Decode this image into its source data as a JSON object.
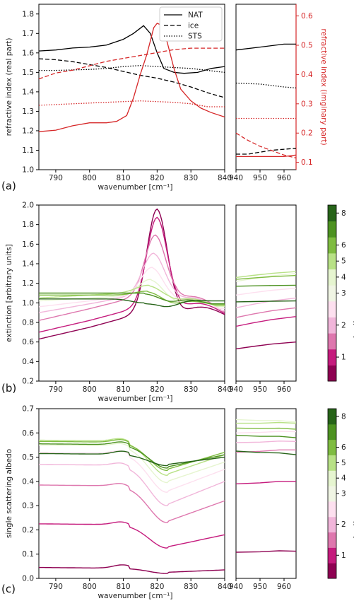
{
  "chart_data": [
    {
      "id": "a",
      "type": "line",
      "panel_label": "(a)",
      "xlabel": "wavenumber [cm⁻¹]",
      "ylabel": "refractive index (real part)",
      "ylabel_right": "refractive index (imginary part)",
      "x_ranges": [
        [
          785,
          840
        ],
        [
          940,
          965
        ]
      ],
      "x_ticks": [
        [
          790,
          800,
          810,
          820,
          830,
          840
        ],
        [
          940,
          950,
          960
        ]
      ],
      "ylim": [
        1.0,
        1.85
      ],
      "y_ticks": [
        1.0,
        1.1,
        1.2,
        1.3,
        1.4,
        1.5,
        1.6,
        1.7,
        1.8
      ],
      "ylim_right": [
        0.075,
        0.64
      ],
      "y_ticks_right": [
        0.1,
        0.2,
        0.3,
        0.4,
        0.5,
        0.6
      ],
      "right_axis_color": "#d62728",
      "legend": {
        "placement": "top-right",
        "entries": [
          {
            "label": "NAT",
            "style": "solid"
          },
          {
            "label": "ice",
            "style": "dashed"
          },
          {
            "label": "STS",
            "style": "dotted"
          }
        ]
      },
      "series": [
        {
          "label": "NAT",
          "axis": "left",
          "color": "#000000",
          "style": "solid",
          "points": [
            [
              785,
              1.61
            ],
            [
              790,
              1.615
            ],
            [
              795,
              1.625
            ],
            [
              800,
              1.63
            ],
            [
              805,
              1.64
            ],
            [
              810,
              1.67
            ],
            [
              813,
              1.7
            ],
            [
              816,
              1.74
            ],
            [
              818,
              1.7
            ],
            [
              820,
              1.6
            ],
            [
              822,
              1.52
            ],
            [
              825,
              1.5
            ],
            [
              828,
              1.495
            ],
            [
              832,
              1.5
            ],
            [
              836,
              1.52
            ],
            [
              840,
              1.53
            ]
          ],
          "points2": [
            [
              940,
              1.615
            ],
            [
              950,
              1.63
            ],
            [
              960,
              1.645
            ],
            [
              965,
              1.645
            ]
          ]
        },
        {
          "label": "ice",
          "axis": "left",
          "color": "#000000",
          "style": "dashed",
          "points": [
            [
              785,
              1.57
            ],
            [
              790,
              1.565
            ],
            [
              795,
              1.555
            ],
            [
              800,
              1.54
            ],
            [
              805,
              1.525
            ],
            [
              810,
              1.505
            ],
            [
              815,
              1.485
            ],
            [
              820,
              1.47
            ],
            [
              825,
              1.45
            ],
            [
              830,
              1.425
            ],
            [
              835,
              1.395
            ],
            [
              840,
              1.37
            ]
          ],
          "points2": [
            [
              940,
              1.08
            ],
            [
              945,
              1.08
            ],
            [
              950,
              1.09
            ],
            [
              955,
              1.1
            ],
            [
              960,
              1.105
            ],
            [
              965,
              1.11
            ]
          ]
        },
        {
          "label": "STS",
          "axis": "left",
          "color": "#000000",
          "style": "dotted",
          "points": [
            [
              785,
              1.51
            ],
            [
              790,
              1.51
            ],
            [
              800,
              1.515
            ],
            [
              805,
              1.52
            ],
            [
              810,
              1.53
            ],
            [
              815,
              1.535
            ],
            [
              820,
              1.53
            ],
            [
              825,
              1.525
            ],
            [
              830,
              1.52
            ],
            [
              835,
              1.51
            ],
            [
              840,
              1.5
            ]
          ],
          "points2": [
            [
              940,
              1.445
            ],
            [
              950,
              1.44
            ],
            [
              960,
              1.425
            ],
            [
              965,
              1.42
            ]
          ]
        },
        {
          "label": "NAT",
          "axis": "right",
          "color": "#d62728",
          "style": "solid",
          "points": [
            [
              785,
              0.205
            ],
            [
              790,
              0.21
            ],
            [
              795,
              0.225
            ],
            [
              800,
              0.235
            ],
            [
              805,
              0.235
            ],
            [
              808,
              0.24
            ],
            [
              811,
              0.26
            ],
            [
              813,
              0.32
            ],
            [
              815,
              0.4
            ],
            [
              817,
              0.47
            ],
            [
              819,
              0.56
            ],
            [
              820,
              0.575
            ],
            [
              821,
              0.57
            ],
            [
              823,
              0.51
            ],
            [
              825,
              0.42
            ],
            [
              827,
              0.35
            ],
            [
              830,
              0.31
            ],
            [
              833,
              0.285
            ],
            [
              836,
              0.27
            ],
            [
              840,
              0.255
            ]
          ],
          "points2": [
            [
              940,
              0.12
            ],
            [
              950,
              0.12
            ],
            [
              960,
              0.12
            ],
            [
              965,
              0.125
            ]
          ]
        },
        {
          "label": "ice",
          "axis": "right",
          "color": "#d62728",
          "style": "dashed",
          "points": [
            [
              785,
              0.385
            ],
            [
              790,
              0.405
            ],
            [
              795,
              0.415
            ],
            [
              800,
              0.43
            ],
            [
              805,
              0.445
            ],
            [
              810,
              0.455
            ],
            [
              815,
              0.465
            ],
            [
              820,
              0.475
            ],
            [
              825,
              0.485
            ],
            [
              830,
              0.49
            ],
            [
              835,
              0.49
            ],
            [
              840,
              0.49
            ]
          ],
          "points2": [
            [
              940,
              0.2
            ],
            [
              945,
              0.175
            ],
            [
              950,
              0.155
            ],
            [
              955,
              0.14
            ],
            [
              960,
              0.125
            ],
            [
              965,
              0.115
            ]
          ]
        },
        {
          "label": "STS",
          "axis": "right",
          "color": "#d62728",
          "style": "dotted",
          "points": [
            [
              785,
              0.295
            ],
            [
              795,
              0.3
            ],
            [
              805,
              0.305
            ],
            [
              815,
              0.31
            ],
            [
              825,
              0.305
            ],
            [
              830,
              0.3
            ],
            [
              835,
              0.29
            ],
            [
              840,
              0.29
            ]
          ],
          "points2": [
            [
              940,
              0.25
            ],
            [
              950,
              0.25
            ],
            [
              960,
              0.25
            ],
            [
              965,
              0.25
            ]
          ]
        }
      ]
    },
    {
      "id": "b",
      "type": "line",
      "panel_label": "(b)",
      "xlabel": "wavenumber [cm⁻¹]",
      "ylabel": "extinction [arbitrary units]",
      "x_ranges": [
        [
          785,
          840
        ],
        [
          940,
          965
        ]
      ],
      "x_ticks": [
        [
          790,
          800,
          810,
          820,
          830,
          840
        ],
        [
          940,
          950,
          960
        ]
      ],
      "ylim": [
        0.2,
        2.0
      ],
      "y_ticks": [
        0.2,
        0.4,
        0.6,
        0.8,
        1.0,
        1.2,
        1.4,
        1.6,
        1.8,
        2.0
      ],
      "colorbar": {
        "label": "NAT median radius [μm]",
        "ticks": [
          "1",
          "2",
          "3",
          "4",
          "5",
          "6",
          "8"
        ],
        "placement": "right"
      },
      "palette": [
        "#8e0152",
        "#c51b7d",
        "#de77ae",
        "#f1b6da",
        "#fde0ef",
        "#f0f5e4",
        "#e6f5d0",
        "#b8e186",
        "#7fbc41",
        "#4d9221",
        "#276419"
      ],
      "series": [
        {
          "color": "#8e0152",
          "base": 0.63,
          "peak": 1.93,
          "slope": 0.004,
          "x0": 820,
          "w": 4.2,
          "right": 0.88,
          "right2": [
            0.53,
            0.6
          ]
        },
        {
          "color": "#c51b7d",
          "base": 0.7,
          "peak": 1.85,
          "slope": 0.004,
          "x0": 820,
          "w": 4.2,
          "right": 0.89,
          "right2": [
            0.76,
            0.86
          ]
        },
        {
          "color": "#de77ae",
          "base": 0.82,
          "peak": 1.68,
          "slope": 0.004,
          "x0": 819.5,
          "w": 4.3,
          "right": 0.91,
          "right2": [
            0.85,
            0.95
          ]
        },
        {
          "color": "#f1b6da",
          "base": 0.9,
          "peak": 1.5,
          "slope": 0.003,
          "x0": 819,
          "w": 4.5,
          "right": 0.92,
          "right2": [
            0.95,
            1.05
          ]
        },
        {
          "color": "#fde0ef",
          "base": 0.96,
          "peak": 1.36,
          "slope": 0.002,
          "x0": 818.5,
          "w": 4.5,
          "right": 0.94,
          "right2": [
            1.08,
            1.15
          ]
        },
        {
          "color": "#e6f5d0",
          "base": 1.02,
          "peak": 1.24,
          "slope": 0.001,
          "x0": 818,
          "w": 4.8,
          "right": 0.96,
          "right2": [
            1.22,
            1.3
          ]
        },
        {
          "color": "#b8e186",
          "base": 1.05,
          "peak": 1.18,
          "slope": 0.001,
          "x0": 817.5,
          "w": 5.0,
          "right": 0.97,
          "right2": [
            1.26,
            1.32
          ]
        },
        {
          "color": "#7fbc41",
          "base": 1.08,
          "peak": 1.12,
          "slope": 0.0,
          "x0": 817,
          "w": 5.0,
          "right": 0.98,
          "right2": [
            1.24,
            1.28
          ]
        },
        {
          "color": "#4d9221",
          "base": 1.1,
          "peak": 1.1,
          "slope": 0.0,
          "x0": 816,
          "w": 5.0,
          "right": 0.99,
          "right2": [
            1.17,
            1.18
          ]
        },
        {
          "color": "#276419",
          "base": 1.04,
          "peak": 1.0,
          "slope": 0.0,
          "x0": 816,
          "w": 5.0,
          "right": 1.02,
          "right2": [
            1.01,
            1.02
          ]
        }
      ]
    },
    {
      "id": "c",
      "type": "line",
      "panel_label": "(c)",
      "xlabel": "wavenumber [cm⁻¹]",
      "ylabel": "single scattering albedo",
      "x_ranges": [
        [
          785,
          840
        ],
        [
          940,
          965
        ]
      ],
      "x_ticks": [
        [
          790,
          800,
          810,
          820,
          830,
          840
        ],
        [
          940,
          950,
          960
        ]
      ],
      "ylim": [
        0.0,
        0.7
      ],
      "y_ticks": [
        0.0,
        0.1,
        0.2,
        0.3,
        0.4,
        0.5,
        0.6,
        0.7
      ],
      "colorbar": {
        "label": "NAT median radius [μm]",
        "ticks": [
          "1",
          "2",
          "3",
          "4",
          "5",
          "6",
          "8"
        ],
        "placement": "right"
      },
      "series": [
        {
          "color": "#8e0152",
          "base": 0.045,
          "dip": 0.025,
          "right": 0.035,
          "right2": [
            0.108,
            0.112
          ]
        },
        {
          "color": "#c51b7d",
          "base": 0.225,
          "dip": 0.13,
          "right": 0.18,
          "right2": [
            0.39,
            0.4
          ]
        },
        {
          "color": "#de77ae",
          "base": 0.385,
          "dip": 0.235,
          "right": 0.32,
          "right2": [
            0.52,
            0.53
          ]
        },
        {
          "color": "#f1b6da",
          "base": 0.47,
          "dip": 0.305,
          "right": 0.4,
          "right2": [
            0.56,
            0.565
          ]
        },
        {
          "color": "#fde0ef",
          "base": 0.52,
          "dip": 0.36,
          "right": 0.45,
          "right2": [
            0.6,
            0.605
          ]
        },
        {
          "color": "#e6f5d0",
          "base": 0.55,
          "dip": 0.4,
          "right": 0.48,
          "right2": [
            0.655,
            0.645
          ]
        },
        {
          "color": "#b8e186",
          "base": 0.57,
          "dip": 0.43,
          "right": 0.51,
          "right2": [
            0.64,
            0.64
          ]
        },
        {
          "color": "#7fbc41",
          "base": 0.565,
          "dip": 0.45,
          "right": 0.52,
          "right2": [
            0.62,
            0.615
          ]
        },
        {
          "color": "#4d9221",
          "base": 0.555,
          "dip": 0.46,
          "right": 0.51,
          "right2": [
            0.59,
            0.58
          ]
        },
        {
          "color": "#276419",
          "base": 0.515,
          "dip": 0.47,
          "right": 0.5,
          "right2": [
            0.525,
            0.51
          ]
        }
      ]
    }
  ]
}
